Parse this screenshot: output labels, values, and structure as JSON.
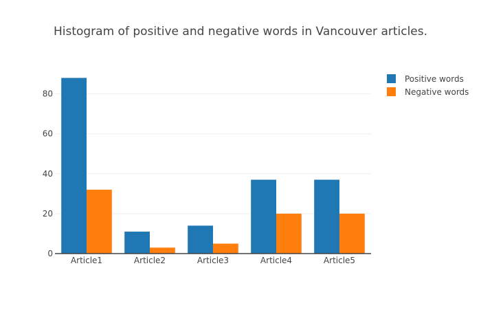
{
  "chart_data": {
    "type": "bar",
    "title": "Histogram of positive and negative words in Vancouver articles.",
    "xlabel": "",
    "ylabel": "",
    "categories": [
      "Article1",
      "Article2",
      "Article3",
      "Article4",
      "Article5"
    ],
    "series": [
      {
        "name": "Positive words",
        "values": [
          88,
          11,
          14,
          37,
          37
        ],
        "color": "#1f77b4"
      },
      {
        "name": "Negative words",
        "values": [
          32,
          3,
          5,
          20,
          20
        ],
        "color": "#ff7f0e"
      }
    ],
    "ylim": [
      0,
      92.6
    ],
    "yticks": [
      0,
      20,
      40,
      60,
      80
    ],
    "grid": true,
    "legend_position": "top-right"
  }
}
